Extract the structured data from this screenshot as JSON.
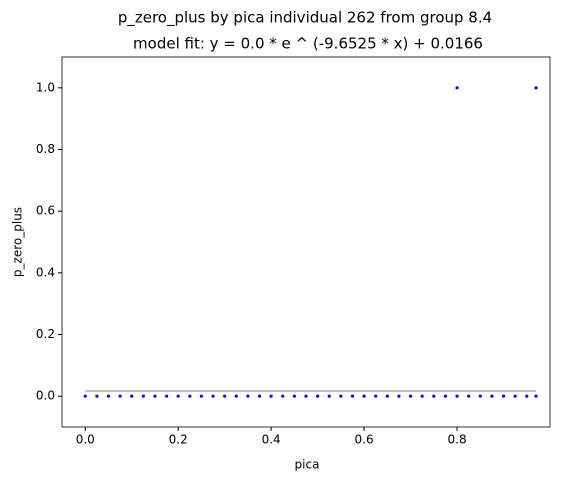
{
  "chart_data": {
    "type": "scatter",
    "title": "p_zero_plus by pica individual 262 from group 8.4",
    "subtitle": "model fit: y = 0.0 * e ^ (-9.6525 * x) + 0.0166",
    "x_label": "pica",
    "y_label": "p_zero_plus",
    "xlim": [
      -0.05,
      1.0
    ],
    "ylim": [
      -0.1,
      1.1
    ],
    "xticks": [
      {
        "value": 0,
        "label": "0.0"
      },
      0.2,
      0.4,
      0.6,
      0.8
    ],
    "yticks": [
      {
        "value": 0,
        "label": "0.0"
      },
      0.2,
      0.4,
      0.6,
      0.8,
      {
        "value": 1,
        "label": "1.0"
      }
    ],
    "series": [
      {
        "color": "#0000ff",
        "x": [
          0,
          0.025,
          0.05,
          0.075,
          0.1,
          0.125,
          0.15,
          0.175,
          0.2,
          0.225,
          0.25,
          0.275,
          0.3,
          0.325,
          0.35,
          0.375,
          0.4,
          0.425,
          0.45,
          0.475,
          0.5,
          0.525,
          0.55,
          0.575,
          0.6,
          0.625,
          0.65,
          0.675,
          0.7,
          0.725,
          0.75,
          0.775,
          0.8,
          0.825,
          0.85,
          0.875,
          0.9,
          0.925,
          0.95,
          0.97,
          0.8,
          0.97
        ],
        "values": [
          0,
          0,
          0,
          0,
          0,
          0,
          0,
          0,
          0,
          0,
          0,
          0,
          0,
          0,
          0,
          0,
          0,
          0,
          0,
          0,
          0,
          0,
          0,
          0,
          0,
          0,
          0,
          0,
          0,
          0,
          0,
          0,
          0,
          0,
          0,
          0,
          0,
          0,
          0,
          0,
          1,
          1
        ]
      }
    ],
    "fit": {
      "color": "#aaaaaa",
      "x": [
        0,
        0.97
      ],
      "values": [
        0.0166,
        0.0166
      ]
    }
  }
}
